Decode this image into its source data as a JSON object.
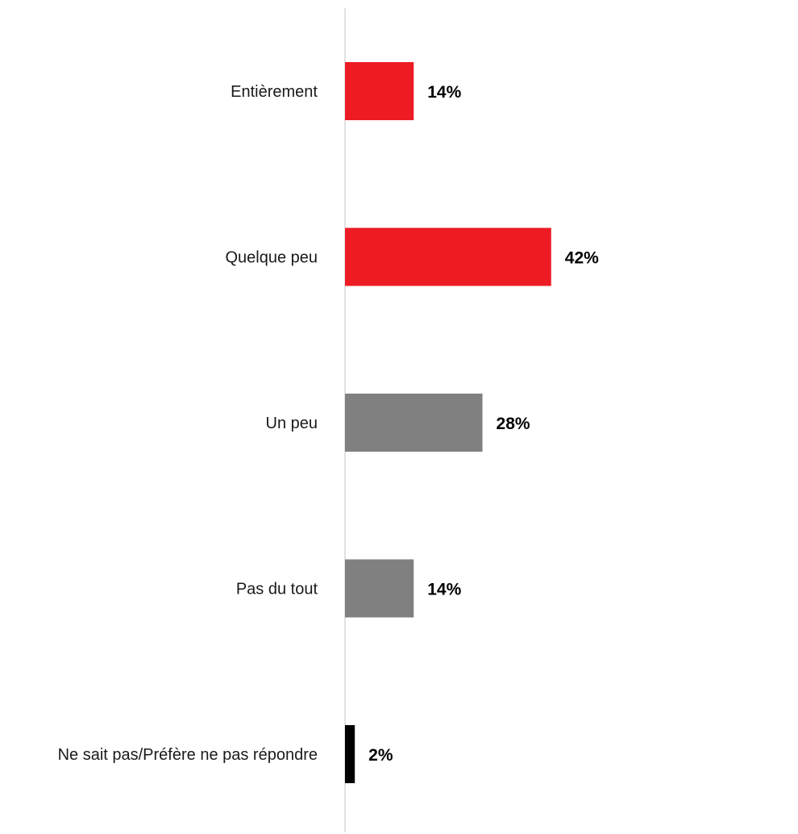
{
  "chart_data": {
    "type": "bar",
    "orientation": "horizontal",
    "categories": [
      "Entièrement",
      "Quelque peu",
      "Un peu",
      "Pas du tout",
      "Ne sait pas/Préfère ne pas répondre"
    ],
    "values": [
      14,
      42,
      28,
      14,
      2
    ],
    "value_labels": [
      "14%",
      "42%",
      "28%",
      "14%",
      "2%"
    ],
    "bar_colors": [
      "#ed1c24",
      "#ed1c24",
      "#808080",
      "#808080",
      "#000000"
    ],
    "axis_line_color": "#d9d9d9",
    "xlim": [
      0,
      100
    ],
    "grid": false,
    "legend": "none",
    "title": "",
    "xlabel": "",
    "ylabel": ""
  }
}
